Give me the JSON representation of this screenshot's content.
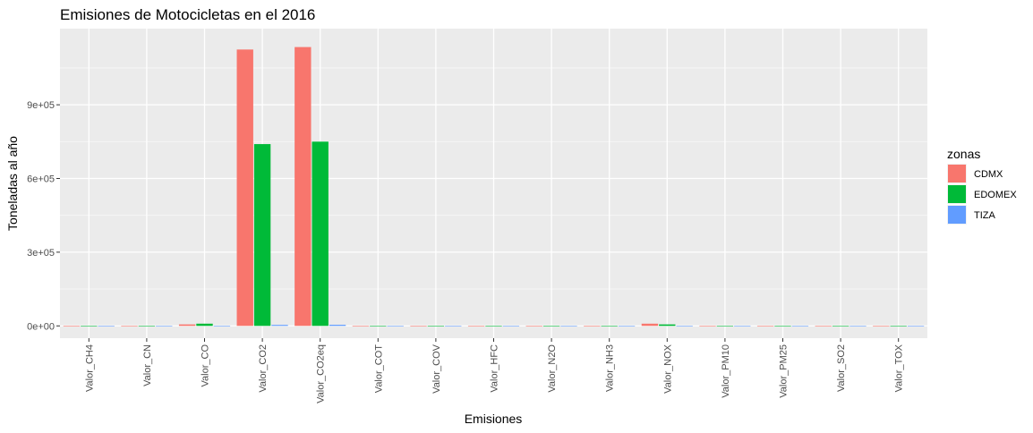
{
  "chart_data": {
    "type": "bar",
    "title": "Emisiones de Motocicletas en el 2016",
    "xlabel": "Emisiones",
    "ylabel": "Toneladas al año",
    "categories": [
      "Valor_CH4",
      "Valor_CN",
      "Valor_CO",
      "Valor_CO2",
      "Valor_CO2eq",
      "Valor_COT",
      "Valor_COV",
      "Valor_HFC",
      "Valor_N2O",
      "Valor_NH3",
      "Valor_NOX",
      "Valor_PM10",
      "Valor_PM25",
      "Valor_SO2",
      "Valor_TOX"
    ],
    "series": [
      {
        "name": "CDMX",
        "color": "#F8766D",
        "values": [
          400,
          50,
          6000,
          1125000,
          1135000,
          900,
          800,
          50,
          60,
          100,
          9000,
          100,
          90,
          60,
          300
        ]
      },
      {
        "name": "EDOMEX",
        "color": "#00BA38",
        "values": [
          500,
          50,
          9000,
          740000,
          750000,
          1000,
          900,
          50,
          60,
          100,
          6000,
          100,
          90,
          60,
          300
        ]
      },
      {
        "name": "TIZA",
        "color": "#619CFF",
        "values": [
          50,
          10,
          600,
          4000,
          4500,
          100,
          90,
          10,
          10,
          10,
          400,
          10,
          10,
          10,
          30
        ]
      }
    ],
    "yticks": [
      0,
      300000,
      600000,
      900000
    ],
    "ytick_labels": [
      "0e+00",
      "3e+05",
      "6e+05",
      "9e+05"
    ],
    "ylim": [
      -50000,
      1210000
    ],
    "legend": {
      "title": "zonas",
      "position": "right"
    },
    "grid": true
  }
}
